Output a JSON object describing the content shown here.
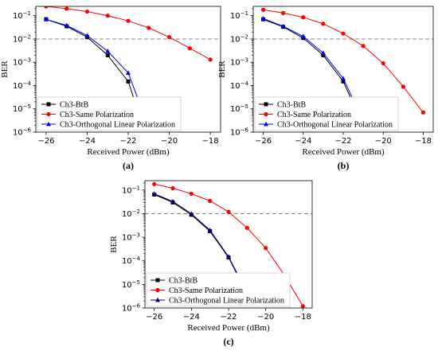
{
  "chart_data": [
    {
      "type": "line",
      "panel_label": "(a)",
      "xlabel": "Received Power (dBm)",
      "ylabel": "BER",
      "xlim": [
        -26.5,
        -17.5
      ],
      "ylim_log10": [
        -6,
        -0.6
      ],
      "y_scale": "log",
      "x_ticks": [
        -26,
        -24,
        -22,
        -20,
        -18
      ],
      "x_tick_labels": [
        "−26",
        "−24",
        "−22",
        "−20",
        "−18"
      ],
      "y_ticks_exp": [
        -6,
        -5,
        -4,
        -3,
        -2,
        -1
      ],
      "threshold": 0.01,
      "legend_position": "lower-left",
      "series": [
        {
          "name": "Ch3-BtB",
          "color": "#000000",
          "marker": "square",
          "x": [
            -26,
            -25,
            -24,
            -23,
            -22,
            -21.5
          ],
          "y": [
            0.07,
            0.035,
            0.012,
            0.002,
            0.00015,
            7e-06
          ]
        },
        {
          "name": "Ch3-Same Polarization",
          "color": "#ff0000",
          "marker": "circle",
          "x": [
            -26,
            -25,
            -24,
            -23,
            -22,
            -21,
            -20,
            -19,
            -18
          ],
          "y": [
            0.25,
            0.2,
            0.15,
            0.1,
            0.06,
            0.03,
            0.012,
            0.004,
            0.0013
          ]
        },
        {
          "name": "Ch3-Orthogonal Linear Polarization",
          "color": "#0000ff",
          "marker": "triangle",
          "x": [
            -26,
            -25,
            -24,
            -23,
            -22,
            -21.3
          ],
          "y": [
            0.07,
            0.038,
            0.014,
            0.003,
            0.00035,
            8e-06
          ]
        }
      ]
    },
    {
      "type": "line",
      "panel_label": "(b)",
      "xlabel": "Received Power (dBm)",
      "ylabel": "BER",
      "xlim": [
        -26.5,
        -17.5
      ],
      "ylim_log10": [
        -6,
        -0.6
      ],
      "y_scale": "log",
      "x_ticks": [
        -26,
        -24,
        -22,
        -20,
        -18
      ],
      "x_tick_labels": [
        "−26",
        "−24",
        "−22",
        "−20",
        "−18"
      ],
      "y_ticks_exp": [
        -6,
        -5,
        -4,
        -3,
        -2,
        -1
      ],
      "threshold": 0.01,
      "legend_position": "lower-left",
      "series": [
        {
          "name": "Ch3-BtB",
          "color": "#000000",
          "marker": "square",
          "x": [
            -26,
            -25,
            -24,
            -23,
            -22,
            -21.3
          ],
          "y": [
            0.07,
            0.033,
            0.011,
            0.002,
            0.00015,
            7e-06
          ]
        },
        {
          "name": "Ch3-Same Polarization",
          "color": "#ff0000",
          "marker": "circle",
          "x": [
            -26,
            -25,
            -24,
            -23,
            -22,
            -21,
            -20,
            -19,
            -18
          ],
          "y": [
            0.18,
            0.13,
            0.085,
            0.045,
            0.017,
            0.005,
            0.0009,
            9e-05,
            7e-06
          ]
        },
        {
          "name": "Ch3-Orthogonal Linear Polarization",
          "color": "#0000ff",
          "marker": "triangle",
          "x": [
            -26,
            -25,
            -24,
            -23,
            -22,
            -21.2
          ],
          "y": [
            0.075,
            0.035,
            0.013,
            0.0025,
            0.0002,
            7e-06
          ]
        }
      ]
    },
    {
      "type": "line",
      "panel_label": "(c)",
      "xlabel": "Received Power (dBm)",
      "ylabel": "BER",
      "xlim": [
        -26.5,
        -17.5
      ],
      "ylim_log10": [
        -6,
        -0.6
      ],
      "y_scale": "log",
      "x_ticks": [
        -26,
        -24,
        -22,
        -20,
        -18
      ],
      "x_tick_labels": [
        "−26",
        "−24",
        "−22",
        "−20",
        "−18"
      ],
      "y_ticks_exp": [
        -6,
        -5,
        -4,
        -3,
        -2,
        -1
      ],
      "threshold": 0.01,
      "legend_position": "lower-left",
      "series": [
        {
          "name": "Ch3-BtB",
          "color": "#000000",
          "marker": "square",
          "x": [
            -26,
            -25,
            -24,
            -23,
            -22,
            -21.2
          ],
          "y": [
            0.065,
            0.03,
            0.009,
            0.0018,
            0.00014,
            8e-06
          ]
        },
        {
          "name": "Ch3-Same Polarization",
          "color": "#ff0000",
          "marker": "circle",
          "x": [
            -26,
            -25,
            -24,
            -23,
            -22,
            -21,
            -20,
            -19,
            -18
          ],
          "y": [
            0.18,
            0.12,
            0.07,
            0.035,
            0.012,
            0.0025,
            0.00035,
            2.5e-05,
            1.2e-06
          ]
        },
        {
          "name": "Ch3-Orthogonal Linear Polarization",
          "color": "#000080",
          "marker": "triangle",
          "x": [
            -26,
            -25,
            -24,
            -23,
            -22,
            -21.2
          ],
          "y": [
            0.07,
            0.033,
            0.01,
            0.002,
            0.00015,
            9e-06
          ]
        }
      ]
    }
  ]
}
